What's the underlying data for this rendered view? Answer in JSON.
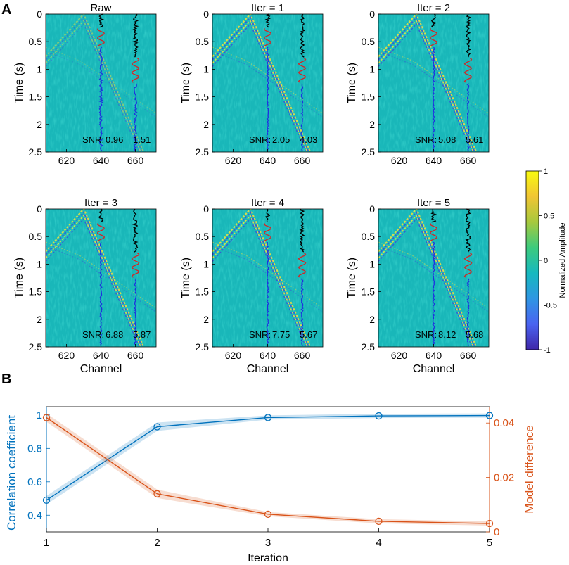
{
  "figure": {
    "panel_a_label": "A",
    "panel_b_label": "B"
  },
  "chart_data": [
    {
      "type": "heatmap",
      "panel": "A",
      "description_type": "seismic gather grid",
      "xlabel": "Channel",
      "ylabel": "Time (s)",
      "xlim": [
        608,
        672
      ],
      "ylim": [
        0,
        2.5
      ],
      "xticks": [
        "620",
        "640",
        "660"
      ],
      "yticks": [
        "0",
        "0.5",
        "1",
        "1.5",
        "2",
        "2.5"
      ],
      "trace_channels": [
        640,
        660
      ],
      "snr_label": "SNR:",
      "colorbar": {
        "label": "Normalized Amplitude",
        "range": [
          -1,
          1
        ],
        "ticks": [
          "1",
          "0.5",
          "0",
          "-0.5",
          "-1"
        ],
        "colormap": [
          "#3e26a8",
          "#4a63f1",
          "#2f96e3",
          "#16b9bf",
          "#3ccb7d",
          "#a7c93d",
          "#f1c533",
          "#f9fb0e"
        ]
      },
      "panels": [
        {
          "title": "Raw",
          "snr": [
            "0.96",
            "1.51"
          ]
        },
        {
          "title": "Iter = 1",
          "snr": [
            "2.05",
            "4.03"
          ]
        },
        {
          "title": "Iter = 2",
          "snr": [
            "5.08",
            "5.61"
          ]
        },
        {
          "title": "Iter = 3",
          "snr": [
            "6.88",
            "5.87"
          ]
        },
        {
          "title": "Iter = 4",
          "snr": [
            "7.75",
            "5.67"
          ]
        },
        {
          "title": "Iter = 5",
          "snr": [
            "8.12",
            "5.68"
          ]
        }
      ]
    },
    {
      "type": "line",
      "panel": "B",
      "xlabel": "Iteration",
      "x": [
        1,
        2,
        3,
        4,
        5
      ],
      "xlim": [
        1,
        5
      ],
      "xticks": [
        "1",
        "2",
        "3",
        "4",
        "5"
      ],
      "series": [
        {
          "name": "Correlation coefficient",
          "axis": "left",
          "color": "#0072bd",
          "values": [
            0.49,
            0.93,
            0.985,
            0.995,
            0.997
          ],
          "ylim": [
            0.3,
            1.05
          ],
          "yticks": [
            0.4,
            0.6,
            0.8,
            1
          ],
          "ytick_labels": [
            "0.4",
            "0.6",
            "0.8",
            "1"
          ]
        },
        {
          "name": "Model difference",
          "axis": "right",
          "color": "#d95319",
          "values": [
            0.042,
            0.014,
            0.0065,
            0.0039,
            0.0031
          ],
          "ylim": [
            0,
            0.046
          ],
          "yticks": [
            0,
            0.02,
            0.04
          ],
          "ytick_labels": [
            "0",
            "0.02",
            "0.04"
          ]
        }
      ]
    }
  ]
}
